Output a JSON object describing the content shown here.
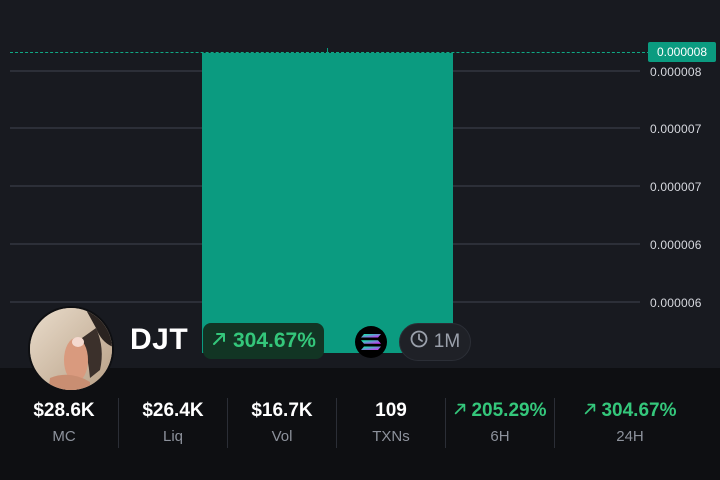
{
  "colors": {
    "background": "#181a20",
    "panel": "#0e0f12",
    "candle_up": "#0b9b80",
    "positive": "#34c77b",
    "grid": "#2c2f38"
  },
  "chart": {
    "current_price_tag": "0.000008",
    "ticks": [
      "0.000008",
      "0.000007",
      "0.000007",
      "0.000006",
      "0.000006"
    ]
  },
  "chart_data": {
    "type": "candlestick",
    "yticks": [
      "0.000008",
      "0.000007",
      "0.000007",
      "0.000006",
      "0.000006"
    ],
    "current_price": "0.000008",
    "candles": [
      {
        "direction": "up",
        "close": 8e-06
      }
    ],
    "grid": true
  },
  "token": {
    "symbol": "DJT",
    "change": "304.67%",
    "change_direction_icon": "arrow-up-right-icon",
    "chain_icon": "solana-icon",
    "interval": "1M",
    "interval_icon": "clock-icon"
  },
  "stats": [
    {
      "value": "$28.6K",
      "label": "MC",
      "positive": false
    },
    {
      "value": "$26.4K",
      "label": "Liq",
      "positive": false
    },
    {
      "value": "$16.7K",
      "label": "Vol",
      "positive": false
    },
    {
      "value": "109",
      "label": "TXNs",
      "positive": false
    },
    {
      "value": "205.29%",
      "label": "6H",
      "positive": true
    },
    {
      "value": "304.67%",
      "label": "24H",
      "positive": true
    }
  ]
}
